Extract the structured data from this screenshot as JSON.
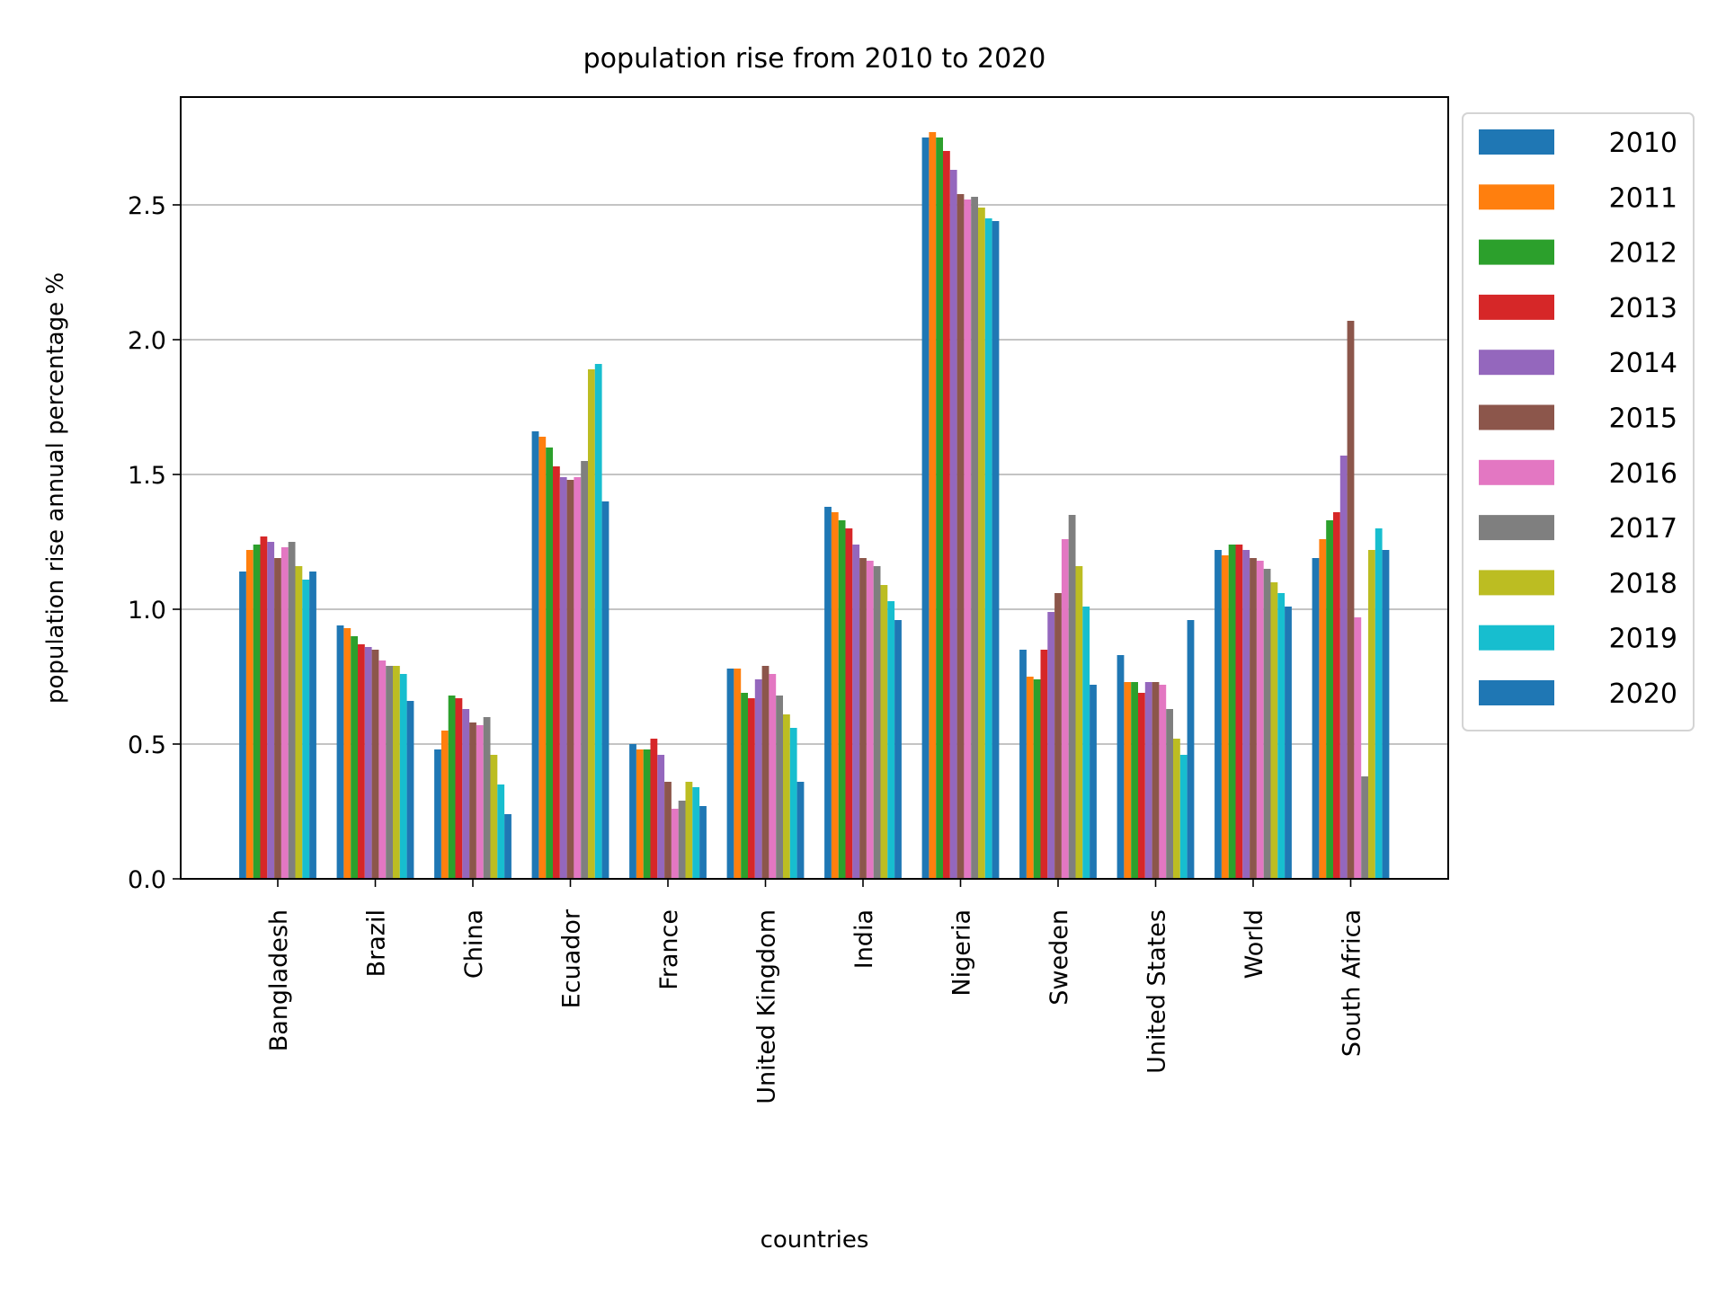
{
  "chart_data": {
    "type": "bar",
    "title": "population rise from 2010 to 2020",
    "xlabel": "countries",
    "ylabel": "population rise annual percentage %",
    "ylim": [
      0,
      2.9
    ],
    "yticks": [
      "0.0",
      "0.5",
      "1.0",
      "1.5",
      "2.0",
      "2.5"
    ],
    "grid": "horizontal",
    "legend_position": "outside-right-top",
    "categories": [
      "Bangladesh",
      "Brazil",
      "China",
      "Ecuador",
      "France",
      "United Kingdom",
      "India",
      "Nigeria",
      "Sweden",
      "United States",
      "World",
      "South Africa"
    ],
    "series": [
      {
        "name": "2010",
        "color": "#1f77b4",
        "values": [
          1.14,
          0.94,
          0.48,
          1.66,
          0.5,
          0.78,
          1.38,
          2.75,
          0.85,
          0.83,
          1.22,
          1.19
        ]
      },
      {
        "name": "2011",
        "color": "#ff7f0e",
        "values": [
          1.22,
          0.93,
          0.55,
          1.64,
          0.48,
          0.78,
          1.36,
          2.77,
          0.75,
          0.73,
          1.2,
          1.26
        ]
      },
      {
        "name": "2012",
        "color": "#2ca02c",
        "values": [
          1.24,
          0.9,
          0.68,
          1.6,
          0.48,
          0.69,
          1.33,
          2.75,
          0.74,
          0.73,
          1.24,
          1.33
        ]
      },
      {
        "name": "2013",
        "color": "#d62728",
        "values": [
          1.27,
          0.87,
          0.67,
          1.53,
          0.52,
          0.67,
          1.3,
          2.7,
          0.85,
          0.69,
          1.24,
          1.36
        ]
      },
      {
        "name": "2014",
        "color": "#9467bd",
        "values": [
          1.25,
          0.86,
          0.63,
          1.49,
          0.46,
          0.74,
          1.24,
          2.63,
          0.99,
          0.73,
          1.22,
          1.57
        ]
      },
      {
        "name": "2015",
        "color": "#8c564b",
        "values": [
          1.19,
          0.85,
          0.58,
          1.48,
          0.36,
          0.79,
          1.19,
          2.54,
          1.06,
          0.73,
          1.19,
          2.07
        ]
      },
      {
        "name": "2016",
        "color": "#e377c2",
        "values": [
          1.23,
          0.81,
          0.57,
          1.49,
          0.26,
          0.76,
          1.18,
          2.52,
          1.26,
          0.72,
          1.18,
          0.97
        ]
      },
      {
        "name": "2017",
        "color": "#7f7f7f",
        "values": [
          1.25,
          0.79,
          0.6,
          1.55,
          0.29,
          0.68,
          1.16,
          2.53,
          1.35,
          0.63,
          1.15,
          0.38
        ]
      },
      {
        "name": "2018",
        "color": "#bcbd22",
        "values": [
          1.16,
          0.79,
          0.46,
          1.89,
          0.36,
          0.61,
          1.09,
          2.49,
          1.16,
          0.52,
          1.1,
          1.22
        ]
      },
      {
        "name": "2019",
        "color": "#17becf",
        "values": [
          1.11,
          0.76,
          0.35,
          1.91,
          0.34,
          0.56,
          1.03,
          2.45,
          1.01,
          0.46,
          1.06,
          1.3
        ]
      },
      {
        "name": "2020",
        "color": "#1f77b4",
        "values": [
          1.14,
          0.66,
          0.24,
          1.4,
          0.27,
          0.36,
          0.96,
          2.44,
          0.72,
          0.96,
          1.01,
          1.22
        ]
      }
    ]
  }
}
